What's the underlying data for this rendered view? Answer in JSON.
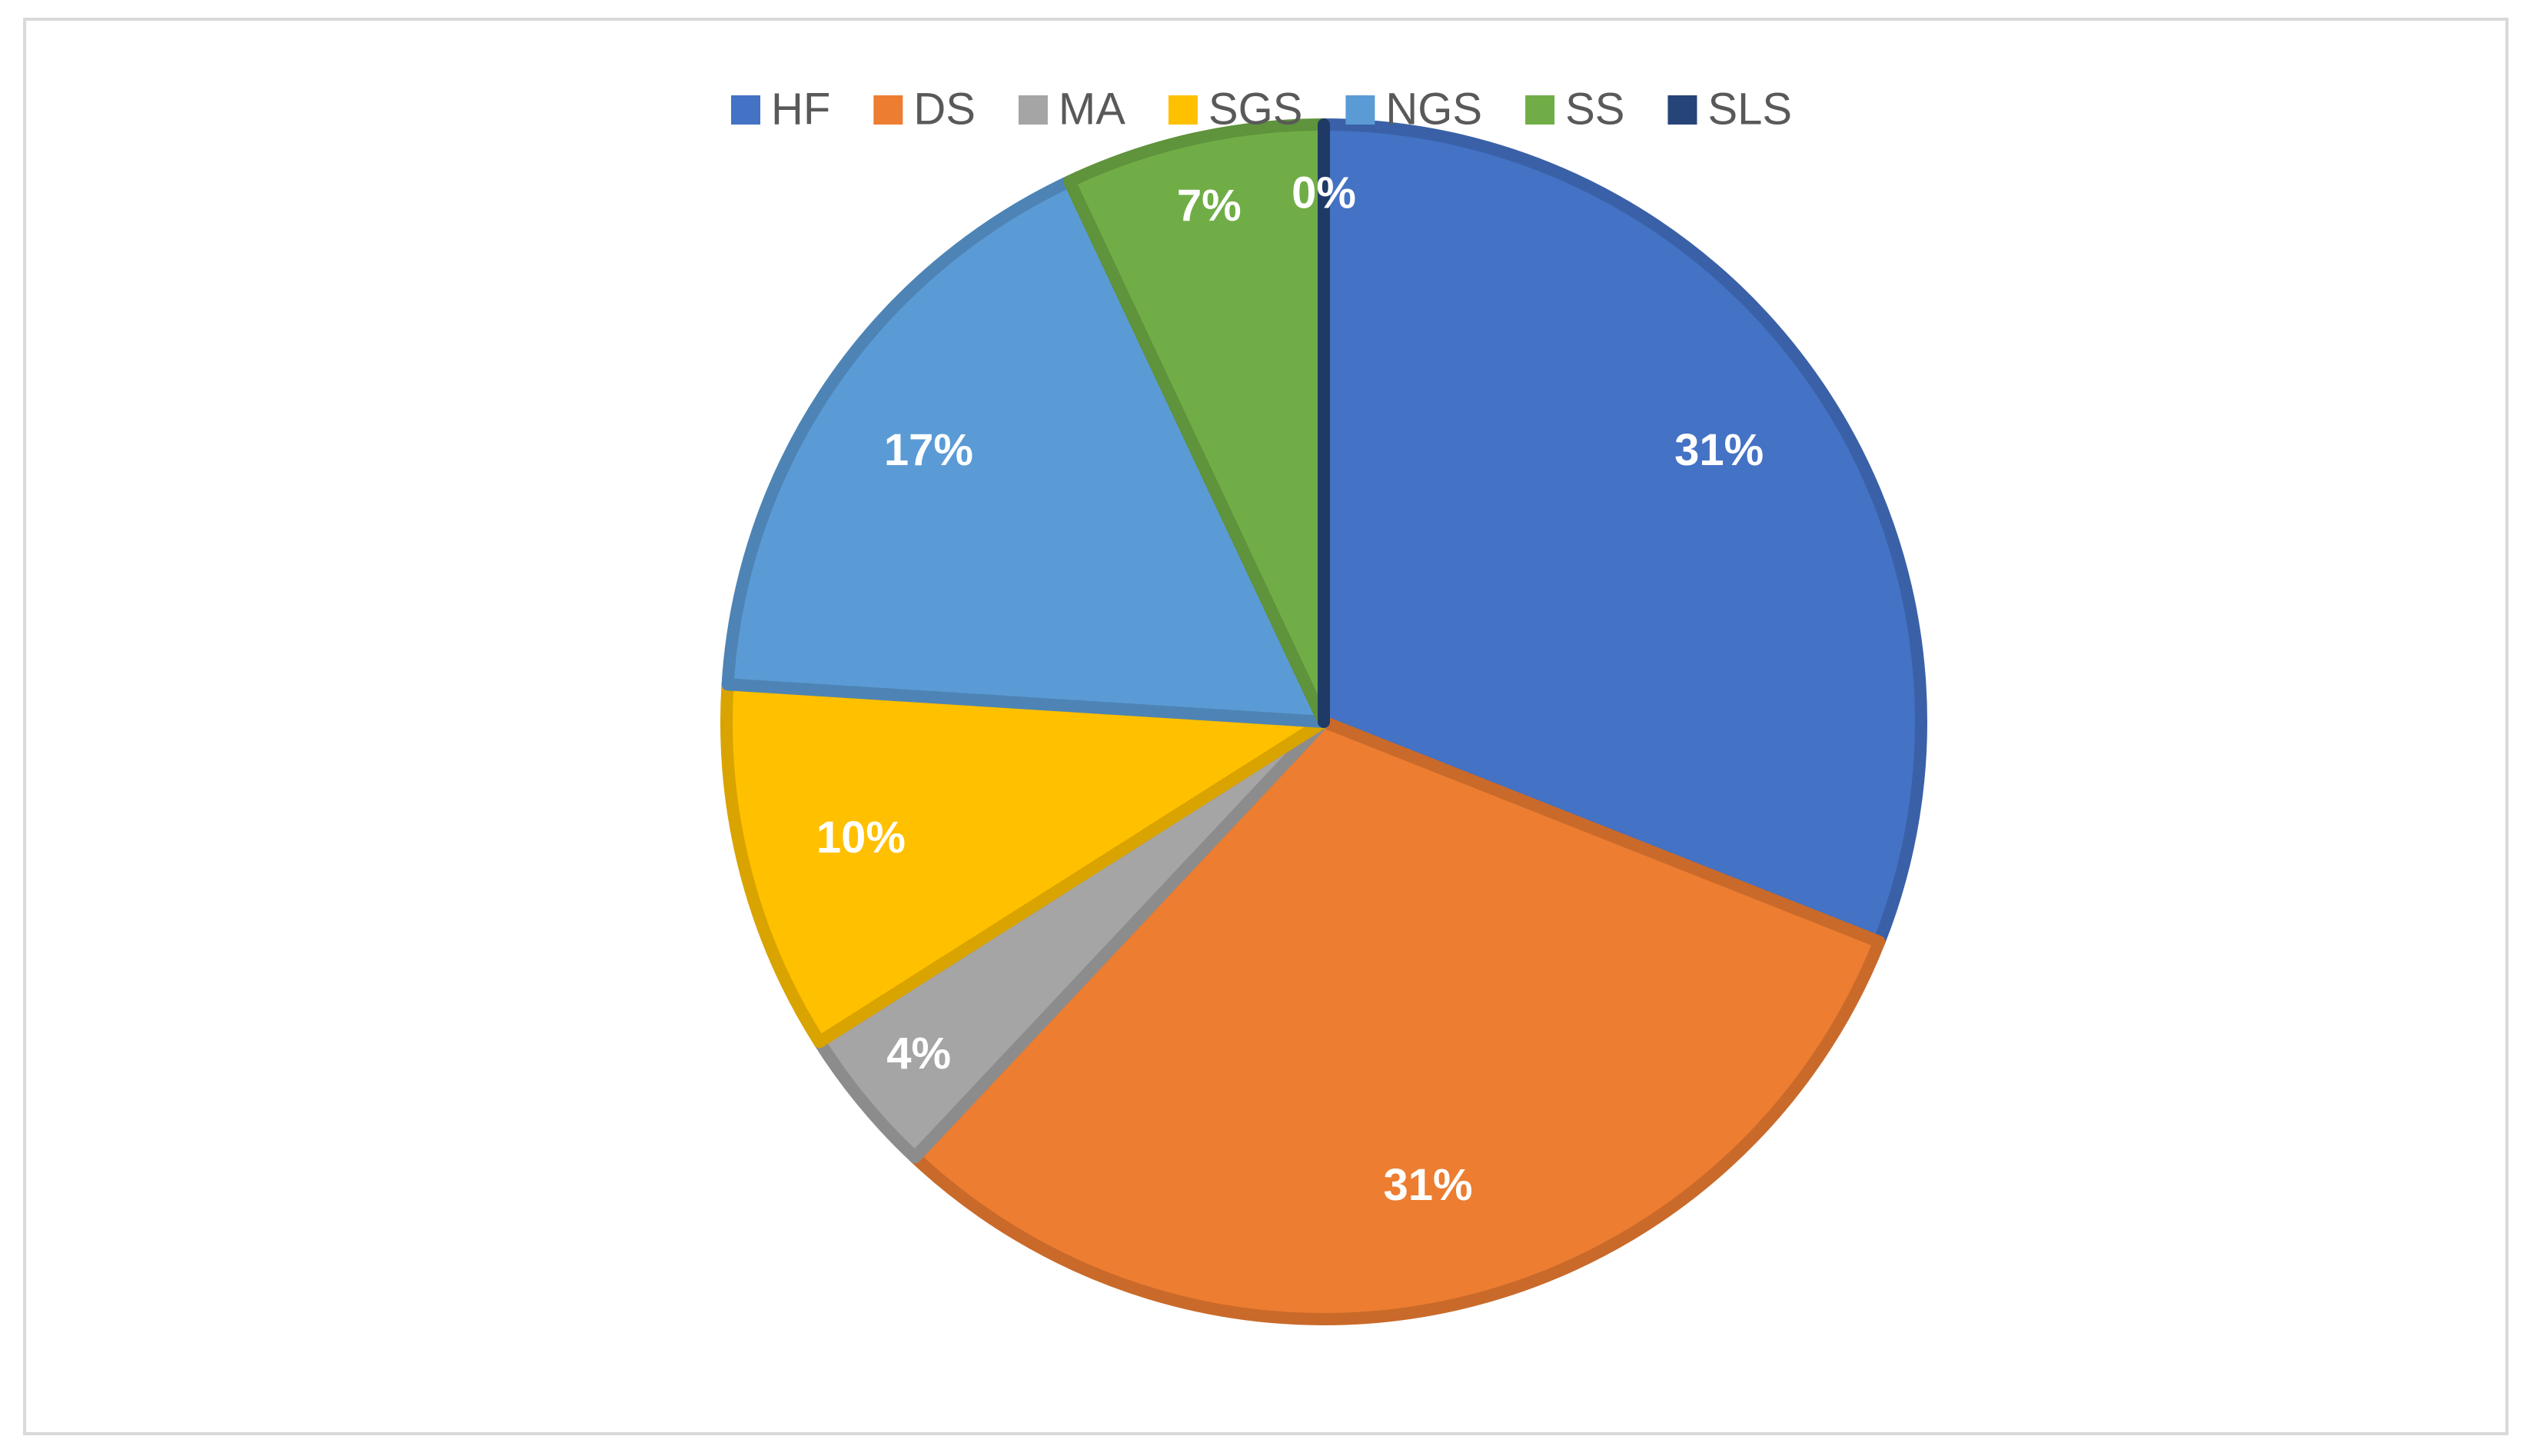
{
  "chart_data": {
    "type": "pie",
    "categories": [
      "HF",
      "DS",
      "MA",
      "SGS",
      "NGS",
      "SS",
      "SLS"
    ],
    "values": [
      31,
      31,
      4,
      10,
      17,
      7,
      0
    ],
    "value_labels": [
      "31%",
      "31%",
      "4%",
      "10%",
      "17%",
      "7%",
      "0%"
    ],
    "colors": [
      "#4472c4",
      "#ed7d31",
      "#a5a5a5",
      "#ffc000",
      "#5b9bd5",
      "#70ad47",
      "#264478"
    ],
    "legend": "top"
  }
}
